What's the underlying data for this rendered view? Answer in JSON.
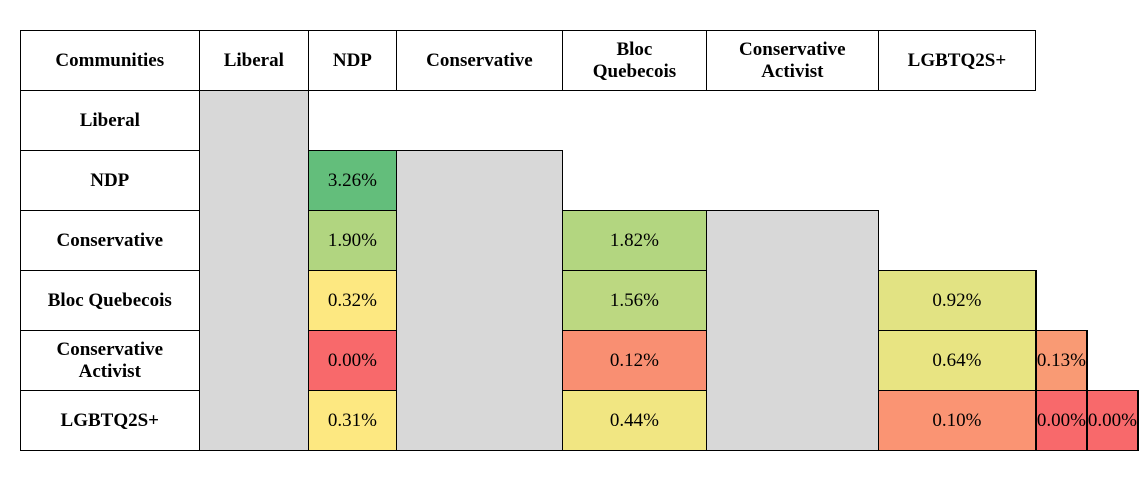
{
  "table": {
    "corner_label": "Communities",
    "columns": [
      "Liberal",
      "NDP",
      "Conservative",
      "Bloc Quebecois",
      "Conservative Activist",
      "LGBTQ2S+"
    ],
    "column_lines": [
      [
        "Liberal"
      ],
      [
        "NDP"
      ],
      [
        "Conservative"
      ],
      [
        "Bloc",
        "Quebecois"
      ],
      [
        "Conservative",
        "Activist"
      ],
      [
        "LGBTQ2S+"
      ]
    ],
    "rows": [
      {
        "label_lines": [
          "Liberal"
        ],
        "cells": []
      },
      {
        "label_lines": [
          "NDP"
        ],
        "cells": [
          {
            "text": "3.26%",
            "color": "#63be7b"
          }
        ]
      },
      {
        "label_lines": [
          "Conservative"
        ],
        "cells": [
          {
            "text": "1.90%",
            "color": "#b1d580"
          },
          {
            "text": "1.82%",
            "color": "#b3d680"
          }
        ]
      },
      {
        "label_lines": [
          "Bloc Quebecois"
        ],
        "cells": [
          {
            "text": "0.32%",
            "color": "#fde881"
          },
          {
            "text": "1.56%",
            "color": "#bcd881"
          },
          {
            "text": "0.92%",
            "color": "#e2e383"
          }
        ]
      },
      {
        "label_lines": [
          "Conservative",
          "Activist"
        ],
        "cells": [
          {
            "text": "0.00%",
            "color": "#f8696b"
          },
          {
            "text": "0.12%",
            "color": "#f98f72"
          },
          {
            "text": "0.64%",
            "color": "#e8e482"
          },
          {
            "text": "0.13%",
            "color": "#f99a74"
          }
        ]
      },
      {
        "label_lines": [
          "LGBTQ2S+"
        ],
        "cells": [
          {
            "text": "0.31%",
            "color": "#fde881"
          },
          {
            "text": "0.44%",
            "color": "#f1e682"
          },
          {
            "text": "0.10%",
            "color": "#fa9473"
          },
          {
            "text": "0.00%",
            "color": "#f8696b"
          },
          {
            "text": "0.00%",
            "color": "#f8696b"
          }
        ]
      }
    ],
    "empty_cell_color": "#d8d8d8"
  }
}
